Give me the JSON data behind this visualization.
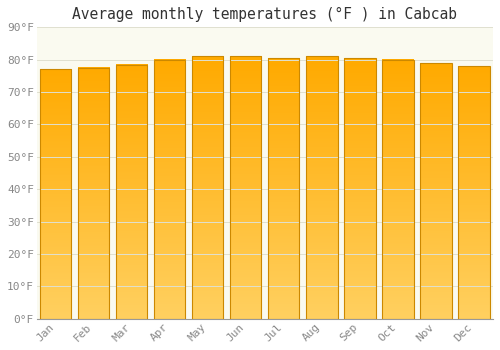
{
  "title": "Average monthly temperatures (°F ) in Cabcab",
  "months": [
    "Jan",
    "Feb",
    "Mar",
    "Apr",
    "May",
    "Jun",
    "Jul",
    "Aug",
    "Sep",
    "Oct",
    "Nov",
    "Dec"
  ],
  "values": [
    77,
    77.5,
    78.5,
    80,
    81,
    81,
    80.5,
    81,
    80.5,
    80,
    79,
    78
  ],
  "bar_color_top": "#FFAA00",
  "bar_color_bottom": "#FFD060",
  "bar_edge_color": "#CC8800",
  "background_color": "#FFFFFF",
  "plot_bg_color": "#FAFAF0",
  "grid_color": "#E0E0D0",
  "ylim": [
    0,
    90
  ],
  "yticks": [
    0,
    10,
    20,
    30,
    40,
    50,
    60,
    70,
    80,
    90
  ],
  "title_fontsize": 10.5,
  "tick_fontsize": 8,
  "tick_label_color": "#888888",
  "title_color": "#333333"
}
